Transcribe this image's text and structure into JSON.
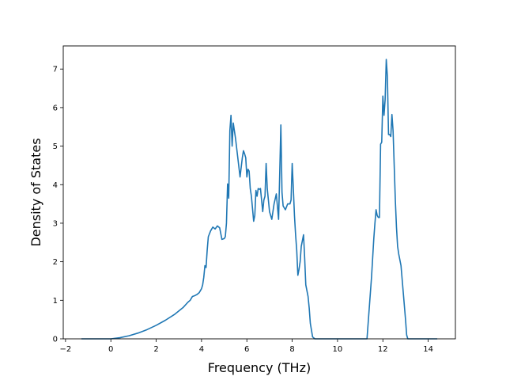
{
  "chart_data": {
    "type": "line",
    "title": "",
    "xlabel": "Frequency (THz)",
    "ylabel": "Density of States",
    "xlim": [
      -2.1,
      15.2
    ],
    "ylim": [
      0,
      7.6
    ],
    "x_ticks": [
      -2,
      0,
      2,
      4,
      6,
      8,
      10,
      12,
      14
    ],
    "y_ticks": [
      0,
      1,
      2,
      3,
      4,
      5,
      6,
      7
    ],
    "grid": false,
    "legend": "none",
    "line_color": "#1f77b4",
    "series": [
      {
        "x": [
          -1.3,
          -1.0,
          -0.5,
          0.0,
          0.4,
          0.8,
          1.2,
          1.6,
          2.0,
          2.4,
          2.8,
          3.2,
          3.4,
          3.5,
          3.6,
          3.7,
          3.8,
          3.9,
          4.0,
          4.05,
          4.1,
          4.15,
          4.2,
          4.25,
          4.3,
          4.4,
          4.5,
          4.6,
          4.7,
          4.8,
          4.9,
          5.0,
          5.05,
          5.1,
          5.15,
          5.2,
          5.25,
          5.3,
          5.35,
          5.4,
          5.45,
          5.5,
          5.6,
          5.7,
          5.8,
          5.85,
          5.9,
          5.95,
          6.0,
          6.05,
          6.1,
          6.15,
          6.2,
          6.3,
          6.35,
          6.4,
          6.45,
          6.5,
          6.55,
          6.6,
          6.7,
          6.75,
          6.8,
          6.85,
          6.9,
          6.95,
          7.0,
          7.05,
          7.1,
          7.2,
          7.3,
          7.4,
          7.45,
          7.5,
          7.55,
          7.6,
          7.7,
          7.8,
          7.9,
          7.95,
          8.0,
          8.05,
          8.1,
          8.15,
          8.2,
          8.25,
          8.3,
          8.35,
          8.4,
          8.45,
          8.5,
          8.55,
          8.6,
          8.7,
          8.75,
          8.8,
          8.9,
          9.0,
          9.5,
          10.0,
          10.5,
          11.0,
          11.3,
          11.4,
          11.5,
          11.6,
          11.65,
          11.7,
          11.75,
          11.8,
          11.85,
          11.9,
          11.95,
          12.0,
          12.05,
          12.1,
          12.15,
          12.2,
          12.25,
          12.3,
          12.35,
          12.4,
          12.45,
          12.5,
          12.55,
          12.6,
          12.65,
          12.7,
          12.8,
          12.9,
          13.0,
          13.05,
          13.1,
          13.5,
          14.0,
          14.4
        ],
        "y": [
          0,
          0,
          0,
          0,
          0.03,
          0.08,
          0.15,
          0.24,
          0.35,
          0.48,
          0.63,
          0.82,
          0.95,
          1.0,
          1.1,
          1.12,
          1.15,
          1.2,
          1.3,
          1.4,
          1.6,
          1.9,
          1.85,
          2.3,
          2.65,
          2.8,
          2.9,
          2.85,
          2.93,
          2.88,
          2.58,
          2.6,
          2.65,
          3.0,
          4.02,
          3.65,
          5.4,
          5.8,
          5.0,
          5.6,
          5.4,
          5.2,
          4.7,
          4.2,
          4.7,
          4.88,
          4.8,
          4.7,
          4.2,
          4.4,
          4.35,
          3.9,
          3.7,
          3.05,
          3.2,
          3.85,
          3.7,
          3.9,
          3.88,
          3.9,
          3.3,
          3.6,
          3.7,
          4.55,
          3.9,
          3.6,
          3.3,
          3.2,
          3.1,
          3.5,
          3.76,
          3.1,
          4.3,
          5.55,
          3.8,
          3.45,
          3.35,
          3.5,
          3.5,
          3.6,
          4.55,
          3.9,
          3.2,
          2.7,
          2.3,
          1.65,
          1.8,
          2.0,
          2.4,
          2.55,
          2.7,
          2.1,
          1.4,
          1.1,
          0.8,
          0.4,
          0.05,
          0,
          0,
          0,
          0,
          0,
          0,
          0.8,
          1.6,
          2.6,
          3.0,
          3.35,
          3.2,
          3.15,
          3.15,
          5.05,
          5.1,
          6.3,
          5.8,
          6.2,
          7.25,
          6.8,
          5.3,
          5.3,
          5.25,
          5.82,
          5.4,
          4.5,
          3.6,
          2.9,
          2.4,
          2.2,
          1.9,
          1.2,
          0.5,
          0.1,
          0,
          0,
          0,
          0
        ]
      }
    ]
  }
}
